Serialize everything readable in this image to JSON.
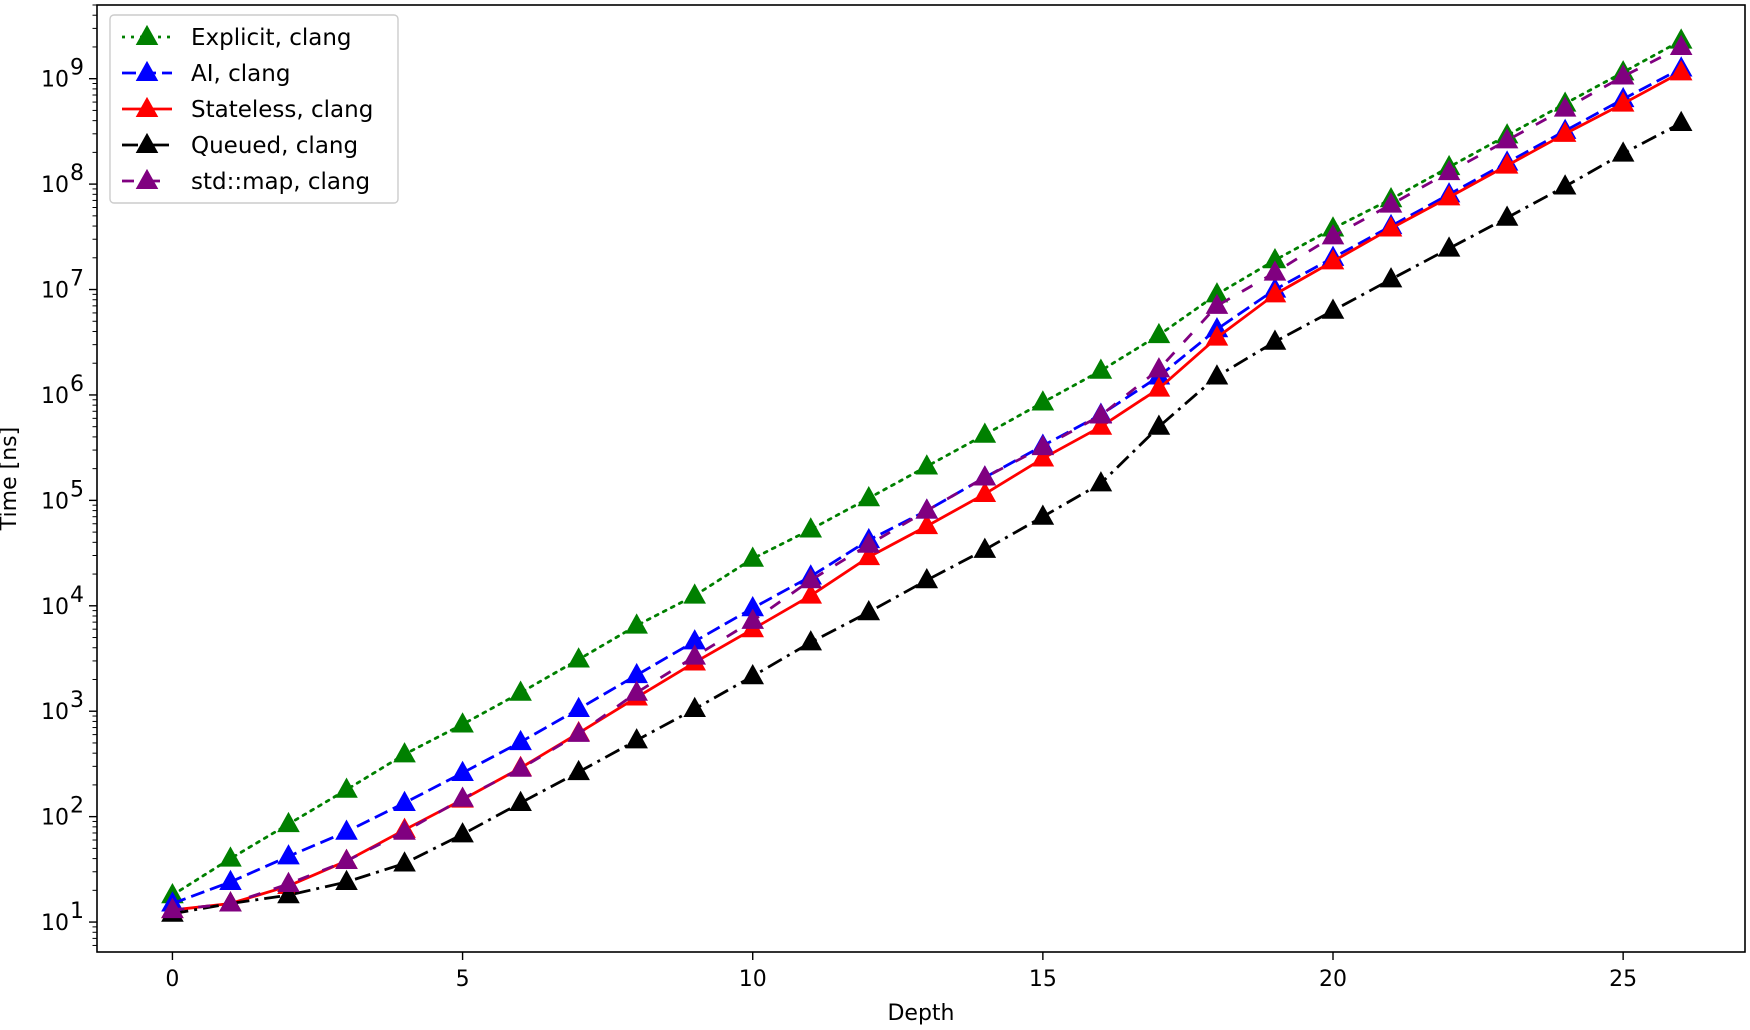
{
  "chart_data": {
    "type": "line",
    "title": "",
    "xlabel": "Depth",
    "ylabel": "Time [ns]",
    "yscale": "log",
    "xlim": [
      -1.3,
      27.1
    ],
    "ylim": [
      5.2,
      5000000000
    ],
    "grid": false,
    "legend_position": "top-left",
    "x_ticks": [
      0,
      5,
      10,
      15,
      20,
      25
    ],
    "x_tick_labels": [
      "0",
      "5",
      "10",
      "15",
      "20",
      "25"
    ],
    "y_ticks": [
      10,
      100,
      1000,
      10000,
      100000,
      1000000,
      10000000,
      100000000,
      1000000000
    ],
    "y_tick_labels": [
      {
        "base": "10",
        "exp": "1"
      },
      {
        "base": "10",
        "exp": "2"
      },
      {
        "base": "10",
        "exp": "3"
      },
      {
        "base": "10",
        "exp": "4"
      },
      {
        "base": "10",
        "exp": "5"
      },
      {
        "base": "10",
        "exp": "6"
      },
      {
        "base": "10",
        "exp": "7"
      },
      {
        "base": "10",
        "exp": "8"
      },
      {
        "base": "10",
        "exp": "9"
      }
    ],
    "x": [
      0,
      1,
      2,
      3,
      4,
      5,
      6,
      7,
      8,
      9,
      10,
      11,
      12,
      13,
      14,
      15,
      16,
      17,
      18,
      19,
      20,
      21,
      22,
      23,
      24,
      25,
      26
    ],
    "series": [
      {
        "name": "Explicit, clang",
        "color": "#008000",
        "dash": "dotted",
        "marker": "triangle",
        "values": [
          18,
          40,
          85,
          180,
          390,
          750,
          1500,
          3100,
          6500,
          12500,
          28000,
          53000,
          105000,
          210000,
          420000,
          850000,
          1700000,
          3700000,
          9000000,
          19000000,
          38000000,
          72000000,
          145000000,
          290000000,
          580000000,
          1150000000,
          2300000000
        ]
      },
      {
        "name": "AI, clang",
        "color": "#0000ff",
        "dash": "dashed",
        "marker": "triangle",
        "values": [
          15,
          24,
          42,
          72,
          135,
          260,
          510,
          1050,
          2200,
          4600,
          9500,
          19000,
          42000,
          80000,
          165000,
          330000,
          650000,
          1500000,
          4200000,
          10000000,
          20000000,
          40000000,
          80000000,
          160000000,
          320000000,
          640000000,
          1250000000
        ]
      },
      {
        "name": "Stateless, clang",
        "color": "#ff0000",
        "dash": "solid",
        "marker": "triangle",
        "values": [
          13,
          15,
          22,
          38,
          75,
          145,
          290,
          620,
          1350,
          2900,
          6000,
          12500,
          29000,
          57000,
          115000,
          250000,
          500000,
          1150000,
          3500000,
          9000000,
          18500000,
          38000000,
          75000000,
          150000000,
          300000000,
          580000000,
          1150000000
        ]
      },
      {
        "name": "Queued, clang",
        "color": "#000000",
        "dash": "dashdot",
        "marker": "triangle",
        "values": [
          12,
          15,
          18,
          24,
          36,
          68,
          135,
          265,
          530,
          1050,
          2150,
          4500,
          8700,
          17500,
          34000,
          70000,
          145000,
          500000,
          1500000,
          3200000,
          6300000,
          12500000,
          24500000,
          48000000,
          95000000,
          195000000,
          380000000
        ]
      },
      {
        "name": "std::map, clang",
        "color": "#800080",
        "dash": "loosedash",
        "marker": "triangle",
        "values": [
          13,
          15,
          23,
          38,
          72,
          148,
          285,
          610,
          1500,
          3300,
          7200,
          17500,
          38000,
          80000,
          165000,
          320000,
          640000,
          1750000,
          7000000,
          14500000,
          32000000,
          64000000,
          130000000,
          260000000,
          520000000,
          1050000000,
          2000000000
        ]
      }
    ]
  }
}
